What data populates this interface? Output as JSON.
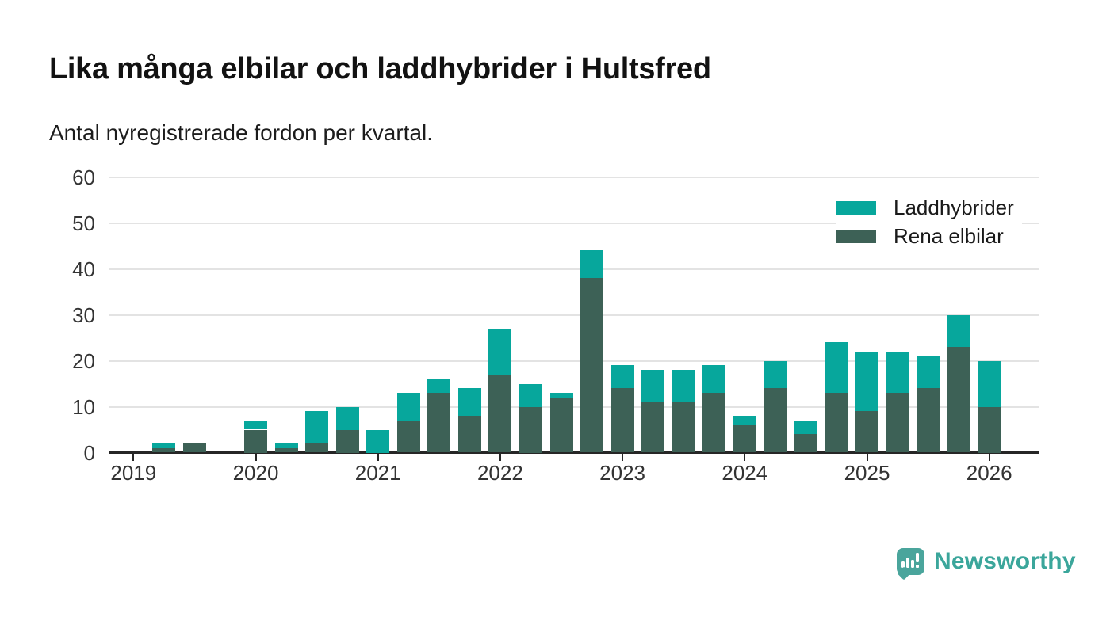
{
  "title": "Lika många elbilar och laddhybrider i Hultsfred",
  "subtitle": "Antal nyregistrerade fordon per kvartal.",
  "brand": {
    "name": "Newsworthy"
  },
  "colors": {
    "laddhybrider": "#07a79c",
    "rena_elbilar": "#3d6156",
    "gridline": "#e3e3e3",
    "axis": "#262626",
    "brand_teal": "#3ba69b"
  },
  "chart_data": {
    "type": "bar",
    "stacked": true,
    "title": "Lika många elbilar och laddhybrider i Hultsfred",
    "subtitle": "Antal nyregistrerade fordon per kvartal.",
    "xlabel": "",
    "ylabel": "",
    "ylim": [
      0,
      60
    ],
    "y_ticks": [
      0,
      10,
      20,
      30,
      40,
      50,
      60
    ],
    "x_ticks": [
      "2019",
      "2020",
      "2021",
      "2022",
      "2023",
      "2024",
      "2025",
      "2026"
    ],
    "grid": "horizontal",
    "legend_position": "top-right",
    "categories": [
      "2019 Q1",
      "2019 Q2",
      "2019 Q3",
      "2019 Q4",
      "2020 Q1",
      "2020 Q2",
      "2020 Q3",
      "2020 Q4",
      "2021 Q1",
      "2021 Q2",
      "2021 Q3",
      "2021 Q4",
      "2022 Q1",
      "2022 Q2",
      "2022 Q3",
      "2022 Q4",
      "2023 Q1",
      "2023 Q2",
      "2023 Q3",
      "2023 Q4",
      "2024 Q1",
      "2024 Q2",
      "2024 Q3",
      "2024 Q4",
      "2025 Q1",
      "2025 Q2",
      "2025 Q3",
      "2025 Q4",
      "2026 Q1"
    ],
    "series": [
      {
        "name": "Laddhybrider",
        "color": "#07a79c",
        "stack_position": "top",
        "values": [
          0,
          1,
          0,
          0,
          2,
          1,
          7,
          5,
          5,
          6,
          3,
          6,
          10,
          5,
          1,
          6,
          5,
          7,
          7,
          6,
          2,
          6,
          3,
          11,
          13,
          9,
          7,
          7,
          10
        ]
      },
      {
        "name": "Rena elbilar",
        "color": "#3d6156",
        "stack_position": "bottom",
        "values": [
          0,
          1,
          2,
          0,
          5,
          1,
          2,
          5,
          0,
          7,
          13,
          8,
          17,
          10,
          12,
          38,
          14,
          11,
          11,
          13,
          6,
          14,
          4,
          13,
          9,
          13,
          14,
          23,
          10
        ]
      }
    ],
    "totals": [
      0,
      2,
      2,
      0,
      7,
      2,
      9,
      10,
      5,
      13,
      16,
      14,
      27,
      15,
      13,
      44,
      19,
      18,
      18,
      19,
      8,
      20,
      7,
      24,
      22,
      22,
      21,
      30,
      20
    ]
  }
}
